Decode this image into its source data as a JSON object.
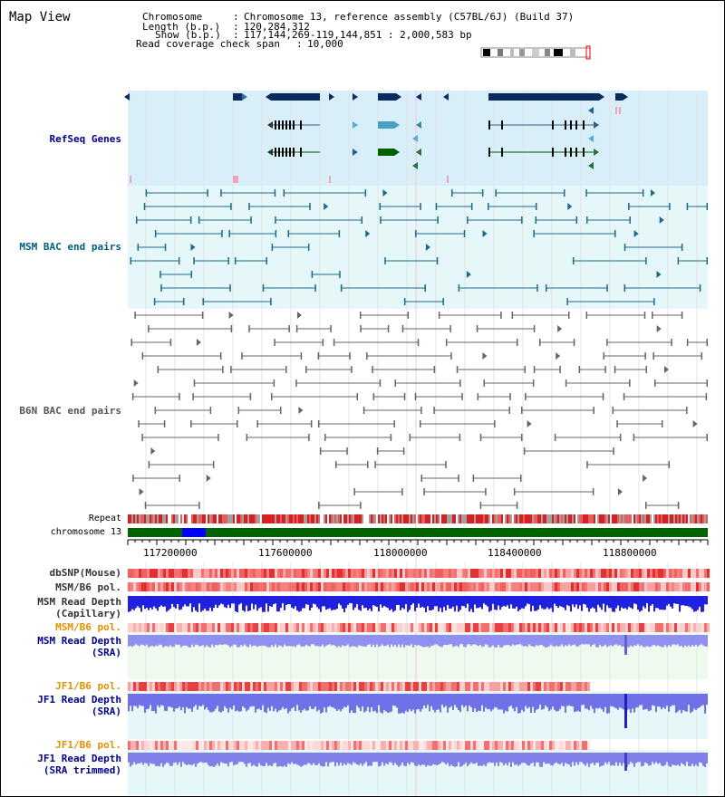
{
  "header": {
    "title": "Map View",
    "chromosome_label": "Chromosome",
    "chromosome_value": "Chromosome 13, reference assembly (C57BL/6J) (Build 37)",
    "length_label": "Length (b.p.)",
    "length_value": "120,284,312",
    "show_label": "Show (b.p.)",
    "show_value": "117,144,269-119,144,851 : 2,000,583 bp",
    "coverage_label": "Read coverage check span",
    "coverage_value": "10,000"
  },
  "tracks": {
    "refseq": "RefSeq Genes",
    "msm_bac": "MSM BAC end pairs",
    "b6n_bac": "B6N BAC end pairs",
    "repeat": "Repeat",
    "chromosome": "chromosome 13",
    "dbsnp": "dbSNP(Mouse)",
    "msm_b6_pol_1": "MSM/B6 pol.",
    "msm_read_depth_cap_1": "MSM Read Depth",
    "msm_read_depth_cap_2": "(Capillary)",
    "msm_b6_pol_2": "MSM/B6 pol.",
    "msm_read_depth_sra_1": "MSM Read Depth",
    "msm_read_depth_sra_2": "(SRA)",
    "jf1_b6_pol_1": "JF1/B6 pol.",
    "jf1_read_depth_1": "JF1 Read Depth",
    "jf1_read_depth_2": "(SRA)",
    "jf1_b6_pol_2": "JF1/B6 pol.",
    "jf1_read_depth_trim_1": "JF1 Read Depth",
    "jf1_read_depth_trim_2": "(SRA trimmed)"
  },
  "axis": {
    "ticks": [
      "117200000",
      "117600000",
      "118000000",
      "118400000",
      "118800000"
    ]
  },
  "colors": {
    "refseq_label": "#00008b",
    "msm_label": "#006080",
    "b6n_label": "#555555",
    "orange_label": "#e09000",
    "blue_label": "#00008b",
    "refseq_bg": "#d8eef8",
    "msm_bg": "#e6f7f9",
    "gene_dark": "#0a2a60",
    "gene_teal": "#4aa0c0",
    "gene_green": "#006000",
    "chrom_green": "#006400",
    "chrom_blue": "#0000ff"
  }
}
